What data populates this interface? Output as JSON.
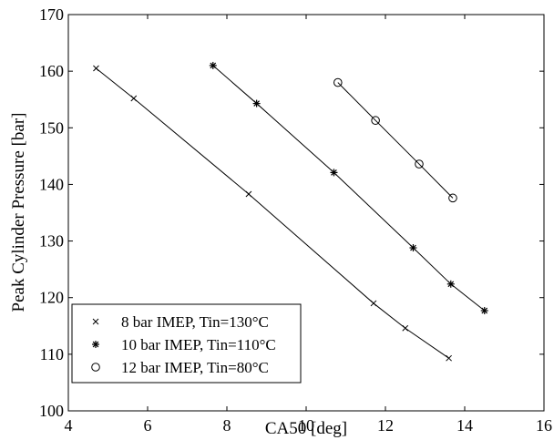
{
  "chart_data": {
    "type": "line",
    "title": "",
    "xlabel": "CA50 [deg]",
    "ylabel": "Peak Cylinder Pressure [bar]",
    "xlim": [
      4,
      16
    ],
    "ylim": [
      100,
      170
    ],
    "xticks": [
      "4",
      "6",
      "8",
      "10",
      "12",
      "14",
      "16"
    ],
    "yticks": [
      "100",
      "110",
      "120",
      "130",
      "140",
      "150",
      "160",
      "170"
    ],
    "grid": false,
    "legend_position": "bottom-left",
    "series": [
      {
        "name": "8 bar IMEP, Tin=130°C",
        "marker": "x",
        "x": [
          4.7,
          5.65,
          8.55,
          11.7,
          12.5,
          13.6
        ],
        "y": [
          160.5,
          155.2,
          138.3,
          119.0,
          114.6,
          109.3
        ]
      },
      {
        "name": "10 bar IMEP, Tin=110°C",
        "marker": "asterisk",
        "x": [
          7.65,
          8.75,
          10.7,
          12.7,
          13.65,
          14.5
        ],
        "y": [
          161.0,
          154.3,
          142.1,
          128.8,
          122.4,
          117.7
        ]
      },
      {
        "name": "12 bar IMEP, Tin=80°C",
        "marker": "circle",
        "x": [
          10.8,
          11.75,
          12.85,
          13.7
        ],
        "y": [
          158.0,
          151.3,
          143.6,
          137.6
        ]
      }
    ]
  }
}
